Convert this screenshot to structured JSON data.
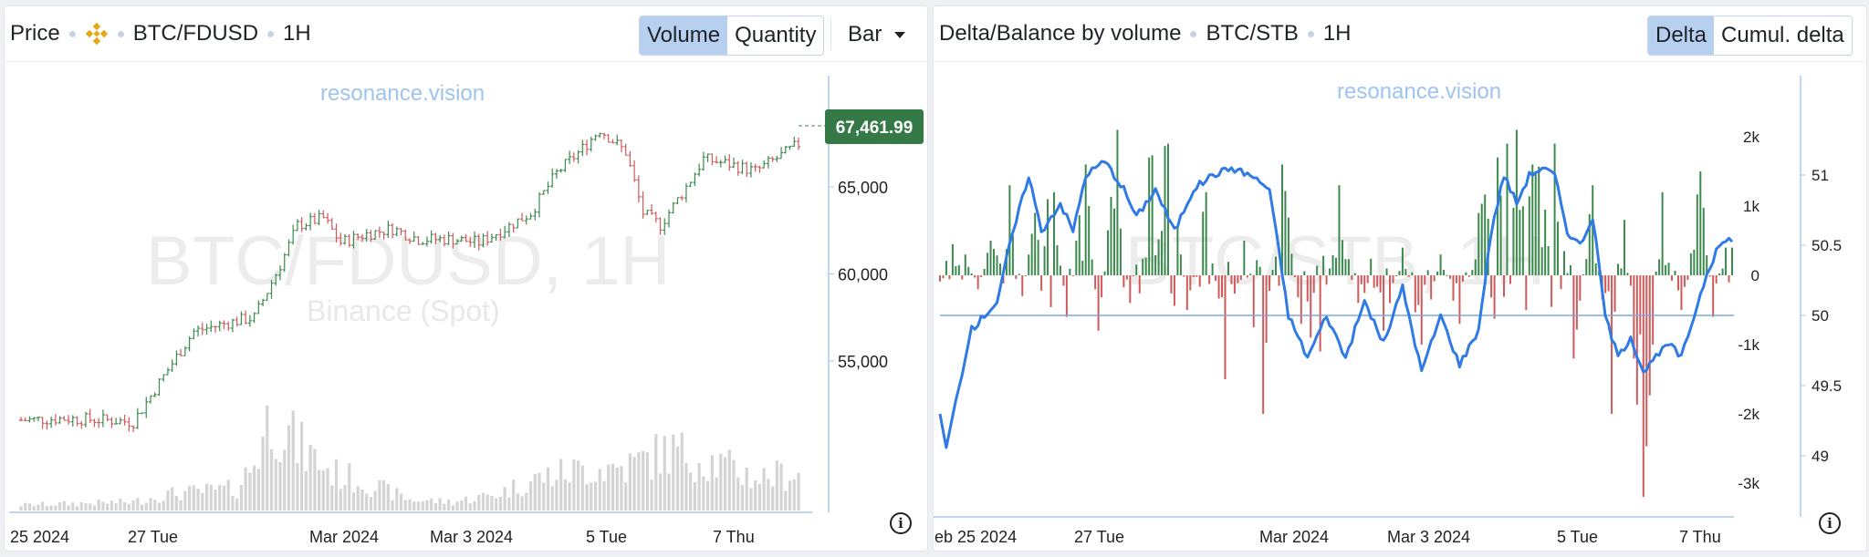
{
  "left_panel": {
    "title": "Price",
    "exchange_icon": "binance-diamond-icon",
    "symbol": "BTC/FDUSD",
    "interval": "1H",
    "toggle": [
      "Volume",
      "Quantity"
    ],
    "toggle_active": "Volume",
    "chart_style": "Bar",
    "watermark": "resonance.vision",
    "bg_symbol": "BTC/FDUSD, 1H",
    "bg_exchange": "Binance (Spot)",
    "price_tag": "67,461.99",
    "price_axis": [
      "65,000",
      "60,000",
      "55,000"
    ],
    "time_axis": [
      "25 2024",
      "27 Tue",
      "Mar 2024",
      "Mar 3 2024",
      "5 Tue",
      "7 Thu"
    ]
  },
  "right_panel": {
    "title": "Delta/Balance by volume",
    "symbol": "BTC/STB",
    "interval": "1H",
    "toggle": [
      "Delta",
      "Cumul. delta"
    ],
    "toggle_active": "Delta",
    "watermark": "resonance.vision",
    "bg_symbol": "BTC/STB, 1H",
    "delta_axis": [
      "2k",
      "1k",
      "0",
      "-1k",
      "-2k",
      "-3k"
    ],
    "balance_axis": [
      "51",
      "50.5",
      "50",
      "49.5",
      "49"
    ],
    "time_axis": [
      "eb 25 2024",
      "27 Tue",
      "Mar 2024",
      "Mar 3 2024",
      "5 Tue",
      "7 Thu"
    ]
  },
  "colors": {
    "up": "#3d8a4e",
    "down": "#d05a5a",
    "line": "#2f7ae5",
    "ref": "#7fa8e0",
    "volume": "#d4d4d4"
  },
  "chart_data": [
    {
      "type": "candlestick",
      "title": "Price",
      "series_name": "BTC/FDUSD",
      "interval": "1H",
      "ylim": [
        51000,
        70000
      ],
      "x_ticks": [
        "25 2024",
        "27 Tue",
        "Mar 2024",
        "Mar 3 2024",
        "5 Tue",
        "7 Thu"
      ],
      "close_path": [
        {
          "x": 0,
          "y": 51600
        },
        {
          "x": 10,
          "y": 51700
        },
        {
          "x": 20,
          "y": 51600
        },
        {
          "x": 26,
          "y": 51500
        },
        {
          "x": 34,
          "y": 54500
        },
        {
          "x": 40,
          "y": 56700
        },
        {
          "x": 48,
          "y": 57200
        },
        {
          "x": 54,
          "y": 57500
        },
        {
          "x": 60,
          "y": 60500
        },
        {
          "x": 64,
          "y": 62800
        },
        {
          "x": 70,
          "y": 63200
        },
        {
          "x": 74,
          "y": 61800
        },
        {
          "x": 80,
          "y": 62300
        },
        {
          "x": 86,
          "y": 62600
        },
        {
          "x": 92,
          "y": 62000
        },
        {
          "x": 100,
          "y": 62000
        },
        {
          "x": 106,
          "y": 61800
        },
        {
          "x": 112,
          "y": 62600
        },
        {
          "x": 118,
          "y": 63500
        },
        {
          "x": 124,
          "y": 65800
        },
        {
          "x": 130,
          "y": 67200
        },
        {
          "x": 134,
          "y": 68300
        },
        {
          "x": 140,
          "y": 67000
        },
        {
          "x": 144,
          "y": 63500
        },
        {
          "x": 148,
          "y": 62800
        },
        {
          "x": 154,
          "y": 65000
        },
        {
          "x": 158,
          "y": 66600
        },
        {
          "x": 164,
          "y": 66300
        },
        {
          "x": 170,
          "y": 65900
        },
        {
          "x": 176,
          "y": 66800
        },
        {
          "x": 180,
          "y": 67460
        }
      ],
      "last_price": 67461.99,
      "volume_profile": [
        {
          "x": 0,
          "v": 0.05
        },
        {
          "x": 26,
          "v": 0.08
        },
        {
          "x": 34,
          "v": 0.15
        },
        {
          "x": 50,
          "v": 0.2
        },
        {
          "x": 54,
          "v": 0.45
        },
        {
          "x": 58,
          "v": 0.9
        },
        {
          "x": 64,
          "v": 0.6
        },
        {
          "x": 72,
          "v": 0.35
        },
        {
          "x": 80,
          "v": 0.25
        },
        {
          "x": 90,
          "v": 0.1
        },
        {
          "x": 100,
          "v": 0.08
        },
        {
          "x": 110,
          "v": 0.15
        },
        {
          "x": 120,
          "v": 0.3
        },
        {
          "x": 130,
          "v": 0.38
        },
        {
          "x": 140,
          "v": 0.4
        },
        {
          "x": 150,
          "v": 0.55
        },
        {
          "x": 160,
          "v": 0.45
        },
        {
          "x": 170,
          "v": 0.3
        },
        {
          "x": 180,
          "v": 0.35
        }
      ]
    },
    {
      "type": "bar+line",
      "title": "Delta/Balance by volume",
      "series_name": "BTC/STB",
      "interval": "1H",
      "delta_ylim": [
        -3200,
        2600
      ],
      "balance_ylim": [
        48.98,
        51.1
      ],
      "reference_line": 50,
      "x_ticks": [
        "eb 25 2024",
        "27 Tue",
        "Mar 2024",
        "Mar 3 2024",
        "5 Tue",
        "7 Thu"
      ],
      "balance_path": [
        {
          "x": 0,
          "y": 49.3
        },
        {
          "x": 2,
          "y": 49.05
        },
        {
          "x": 6,
          "y": 49.5
        },
        {
          "x": 10,
          "y": 49.9
        },
        {
          "x": 14,
          "y": 50.0
        },
        {
          "x": 18,
          "y": 50.1
        },
        {
          "x": 22,
          "y": 50.5
        },
        {
          "x": 28,
          "y": 51.0
        },
        {
          "x": 32,
          "y": 50.6
        },
        {
          "x": 38,
          "y": 50.8
        },
        {
          "x": 42,
          "y": 50.6
        },
        {
          "x": 46,
          "y": 51.0
        },
        {
          "x": 52,
          "y": 51.1
        },
        {
          "x": 58,
          "y": 50.9
        },
        {
          "x": 62,
          "y": 50.7
        },
        {
          "x": 68,
          "y": 50.9
        },
        {
          "x": 74,
          "y": 50.6
        },
        {
          "x": 80,
          "y": 50.9
        },
        {
          "x": 86,
          "y": 51.0
        },
        {
          "x": 92,
          "y": 51.05
        },
        {
          "x": 98,
          "y": 51.0
        },
        {
          "x": 104,
          "y": 50.9
        },
        {
          "x": 110,
          "y": 50.0
        },
        {
          "x": 116,
          "y": 49.7
        },
        {
          "x": 122,
          "y": 50.0
        },
        {
          "x": 128,
          "y": 49.7
        },
        {
          "x": 134,
          "y": 50.1
        },
        {
          "x": 140,
          "y": 49.8
        },
        {
          "x": 146,
          "y": 50.2
        },
        {
          "x": 152,
          "y": 49.6
        },
        {
          "x": 158,
          "y": 50.0
        },
        {
          "x": 164,
          "y": 49.65
        },
        {
          "x": 170,
          "y": 49.9
        },
        {
          "x": 174,
          "y": 50.6
        },
        {
          "x": 178,
          "y": 51.0
        },
        {
          "x": 182,
          "y": 50.8
        },
        {
          "x": 186,
          "y": 51.0
        },
        {
          "x": 190,
          "y": 51.05
        },
        {
          "x": 194,
          "y": 51.0
        },
        {
          "x": 198,
          "y": 50.6
        },
        {
          "x": 202,
          "y": 50.5
        },
        {
          "x": 206,
          "y": 50.7
        },
        {
          "x": 210,
          "y": 50.0
        },
        {
          "x": 214,
          "y": 49.7
        },
        {
          "x": 218,
          "y": 49.85
        },
        {
          "x": 222,
          "y": 49.6
        },
        {
          "x": 226,
          "y": 49.7
        },
        {
          "x": 230,
          "y": 49.8
        },
        {
          "x": 234,
          "y": 49.7
        },
        {
          "x": 238,
          "y": 50.0
        },
        {
          "x": 242,
          "y": 50.3
        },
        {
          "x": 246,
          "y": 50.5
        },
        {
          "x": 250,
          "y": 50.55
        }
      ],
      "delta_bars": [
        {
          "x": 4,
          "v": 450
        },
        {
          "x": 8,
          "v": 300
        },
        {
          "x": 12,
          "v": -200
        },
        {
          "x": 16,
          "v": 500
        },
        {
          "x": 22,
          "v": 1300
        },
        {
          "x": 26,
          "v": -300
        },
        {
          "x": 30,
          "v": 900
        },
        {
          "x": 36,
          "v": 1200
        },
        {
          "x": 40,
          "v": -600
        },
        {
          "x": 46,
          "v": 1600
        },
        {
          "x": 50,
          "v": -800
        },
        {
          "x": 56,
          "v": 2100
        },
        {
          "x": 60,
          "v": -400
        },
        {
          "x": 66,
          "v": 1700
        },
        {
          "x": 72,
          "v": 1900
        },
        {
          "x": 78,
          "v": -500
        },
        {
          "x": 84,
          "v": 1200
        },
        {
          "x": 90,
          "v": -1500
        },
        {
          "x": 96,
          "v": 500
        },
        {
          "x": 102,
          "v": -2000
        },
        {
          "x": 108,
          "v": 1600
        },
        {
          "x": 114,
          "v": -700
        },
        {
          "x": 120,
          "v": -1100
        },
        {
          "x": 126,
          "v": 1300
        },
        {
          "x": 132,
          "v": -400
        },
        {
          "x": 140,
          "v": -800
        },
        {
          "x": 146,
          "v": 400
        },
        {
          "x": 152,
          "v": -1000
        },
        {
          "x": 158,
          "v": 300
        },
        {
          "x": 164,
          "v": -700
        },
        {
          "x": 170,
          "v": 900
        },
        {
          "x": 176,
          "v": 1700
        },
        {
          "x": 182,
          "v": 2100
        },
        {
          "x": 188,
          "v": 1500
        },
        {
          "x": 194,
          "v": 1900
        },
        {
          "x": 200,
          "v": -1200
        },
        {
          "x": 206,
          "v": 1300
        },
        {
          "x": 212,
          "v": -2000
        },
        {
          "x": 216,
          "v": 800
        },
        {
          "x": 222,
          "v": -3200
        },
        {
          "x": 228,
          "v": 1200
        },
        {
          "x": 234,
          "v": -500
        },
        {
          "x": 240,
          "v": 1500
        },
        {
          "x": 244,
          "v": -600
        },
        {
          "x": 248,
          "v": 400
        }
      ]
    }
  ]
}
